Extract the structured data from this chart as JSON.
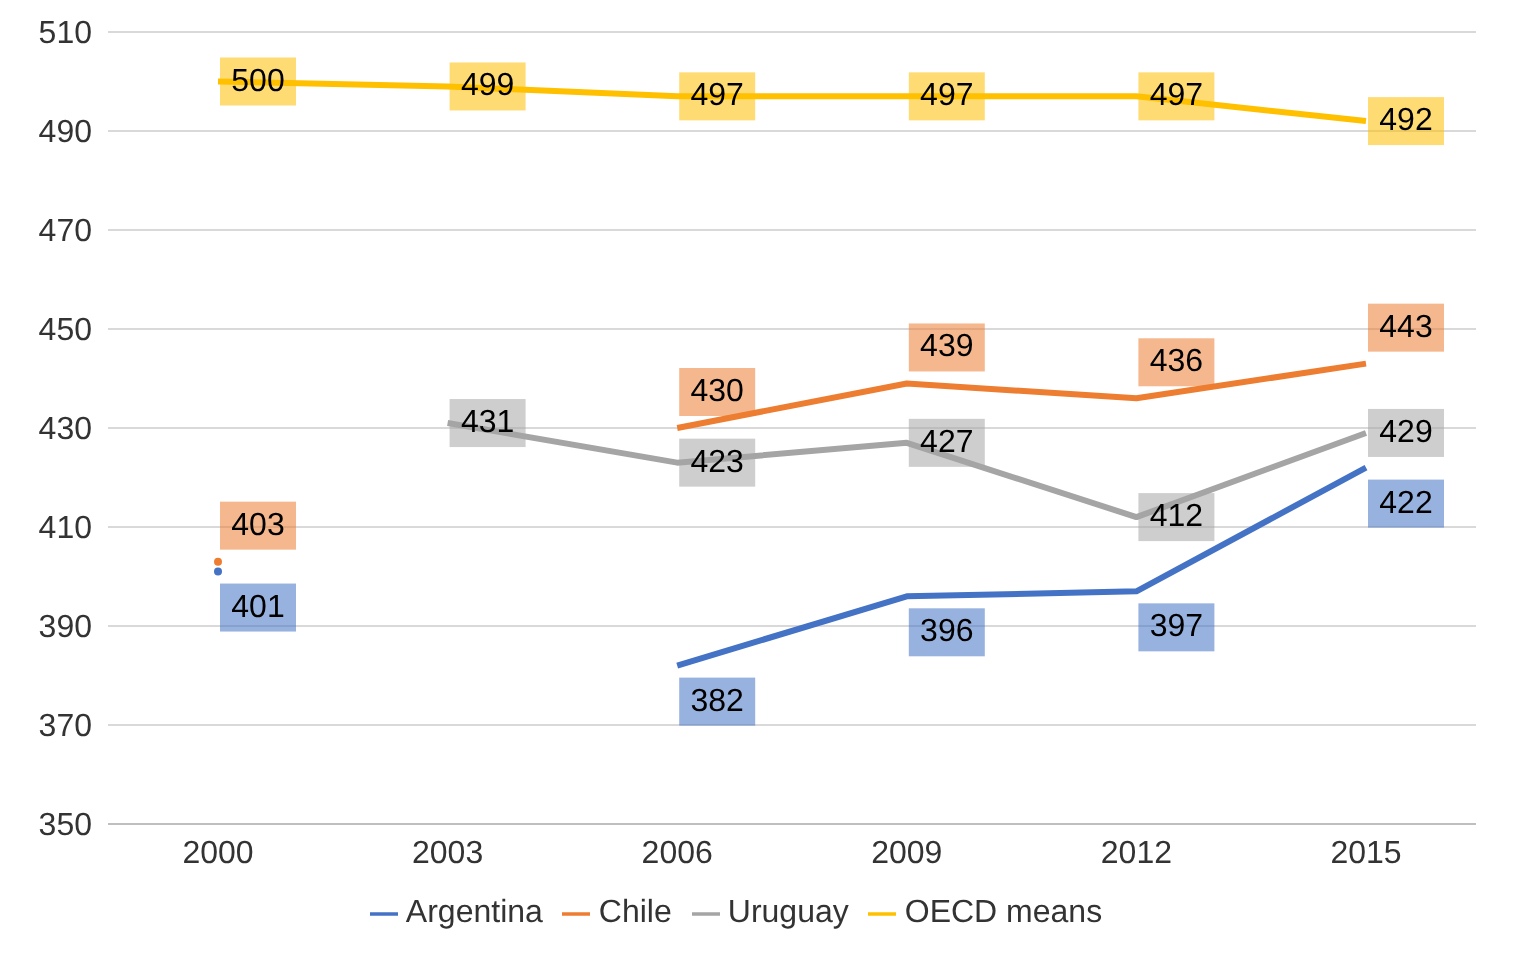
{
  "chart_data": {
    "type": "line",
    "categories": [
      "2000",
      "2003",
      "2006",
      "2009",
      "2012",
      "2015"
    ],
    "series": [
      {
        "name": "Argentina",
        "color": "#4472c4",
        "values": [
          401,
          null,
          382,
          396,
          397,
          422
        ]
      },
      {
        "name": "Chile",
        "color": "#ed7d31",
        "values": [
          403,
          null,
          430,
          439,
          436,
          443
        ]
      },
      {
        "name": "Uruguay",
        "color": "#a5a5a5",
        "values": [
          null,
          431,
          423,
          427,
          412,
          429
        ]
      },
      {
        "name": "OECD means",
        "color": "#ffc000",
        "values": [
          500,
          499,
          497,
          497,
          497,
          492
        ]
      }
    ],
    "ylim": [
      350,
      510
    ],
    "yticks": [
      350,
      370,
      390,
      410,
      430,
      450,
      470,
      490,
      510
    ],
    "grid": "y",
    "legend": "bottom",
    "data_labels": true,
    "marker": "none",
    "line_style": "solid"
  }
}
